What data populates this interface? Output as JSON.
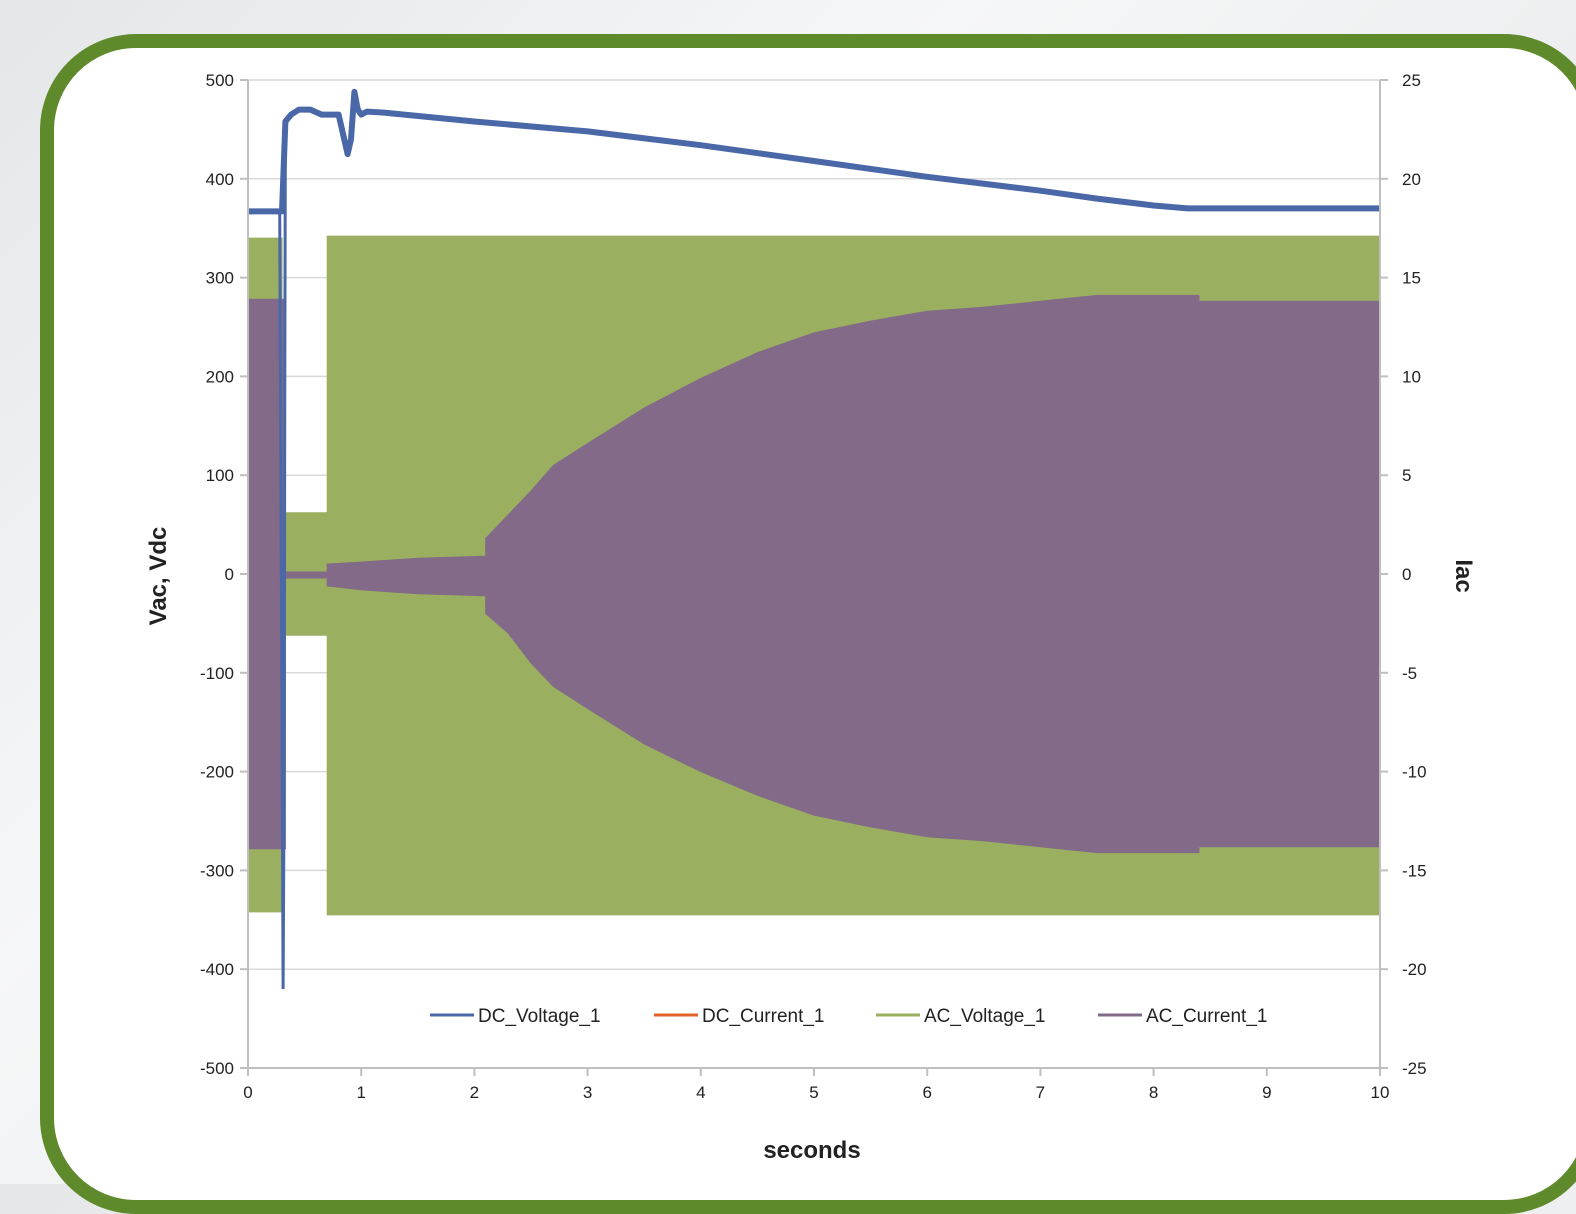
{
  "chart_data": {
    "type": "line",
    "title": "",
    "xlabel": "seconds",
    "ylabel": "Vac, Vdc",
    "y2label": "Iac",
    "xlim": [
      0,
      10
    ],
    "ylim": [
      -500,
      500
    ],
    "y2lim": [
      -25,
      25
    ],
    "x_ticks": [
      "0",
      "1",
      "2",
      "3",
      "4",
      "5",
      "6",
      "7",
      "8",
      "9",
      "10"
    ],
    "y_ticks": [
      "500",
      "400",
      "300",
      "200",
      "100",
      "0",
      "-100",
      "-200",
      "-300",
      "-400",
      "-500"
    ],
    "y2_ticks": [
      "25",
      "20",
      "15",
      "10",
      "5",
      "0",
      "-5",
      "-10",
      "-15",
      "-20",
      "-25"
    ],
    "grid": "horizontal",
    "legend_position": "bottom-inside",
    "series": [
      {
        "name": "DC_Voltage_1",
        "axis": "left",
        "color": "#4a68a8",
        "style": "line",
        "x": [
          0,
          0.3,
          0.33,
          0.38,
          0.45,
          0.55,
          0.65,
          0.8,
          0.84,
          0.88,
          0.91,
          0.94,
          0.97,
          1.0,
          1.05,
          1.2,
          2,
          3,
          4,
          5,
          6,
          7,
          7.5,
          8,
          8.3,
          8.5,
          9,
          10
        ],
        "y": [
          367,
          367,
          458,
          465,
          470,
          470,
          465,
          465,
          445,
          425,
          440,
          488,
          470,
          465,
          468,
          467,
          458,
          448,
          434,
          418,
          402,
          388,
          380,
          373,
          370,
          370,
          370,
          370
        ]
      },
      {
        "name": "DC_Current_1",
        "axis": "right",
        "color": "#e2622a",
        "style": "line",
        "x": [
          0,
          10
        ],
        "y": [
          0,
          0
        ]
      },
      {
        "name": "AC_Voltage_1",
        "axis": "left",
        "color": "#9aaf60",
        "style": "envelope",
        "x": [
          0,
          0.3,
          0.3,
          0.7,
          0.7,
          10
        ],
        "upper": [
          340,
          340,
          62,
          62,
          342,
          342
        ],
        "lower": [
          -342,
          -342,
          -62,
          -62,
          -345,
          -345
        ]
      },
      {
        "name": "AC_Current_1",
        "axis": "right",
        "color": "#826a88",
        "style": "envelope",
        "x": [
          0,
          0.33,
          0.33,
          0.7,
          0.7,
          1.0,
          1.5,
          2.1,
          2.1,
          2.3,
          2.5,
          2.7,
          3.0,
          3.5,
          4.0,
          4.5,
          5.0,
          5.5,
          6.0,
          6.5,
          7.0,
          7.5,
          8.0,
          8.4,
          8.4,
          10
        ],
        "upper": [
          13.9,
          13.9,
          0.1,
          0.1,
          0.5,
          0.6,
          0.8,
          0.9,
          1.8,
          3.0,
          4.2,
          5.5,
          6.6,
          8.4,
          9.9,
          11.2,
          12.2,
          12.8,
          13.3,
          13.5,
          13.8,
          14.1,
          14.1,
          14.1,
          13.8,
          13.8
        ],
        "lower": [
          -13.9,
          -13.9,
          -0.2,
          -0.2,
          -0.6,
          -0.8,
          -1.0,
          -1.1,
          -2.0,
          -3.0,
          -4.5,
          -5.7,
          -6.8,
          -8.6,
          -10.0,
          -11.2,
          -12.2,
          -12.8,
          -13.3,
          -13.5,
          -13.8,
          -14.1,
          -14.1,
          -14.1,
          -13.8,
          -13.8
        ]
      }
    ]
  }
}
